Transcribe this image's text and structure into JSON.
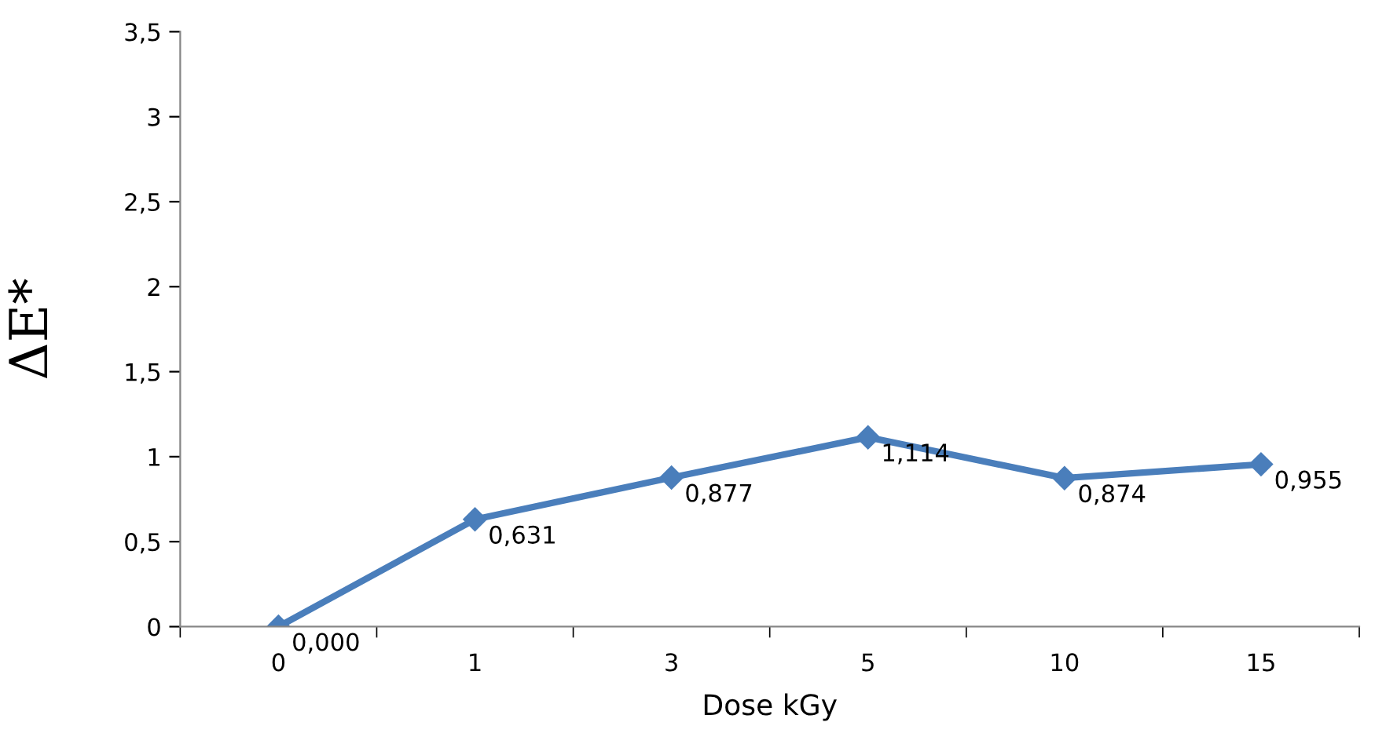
{
  "chart_data": {
    "type": "line",
    "xlabel": "Dose kGy",
    "ylabel": "ΔE*",
    "categories": [
      "0",
      "1",
      "3",
      "5",
      "10",
      "15"
    ],
    "series": [
      {
        "color": "#4a7ebb",
        "values": [
          0.0,
          0.631,
          0.877,
          1.114,
          0.874,
          0.955
        ],
        "value_labels": [
          "0,000",
          "0,631",
          "0,877",
          "1,114",
          "0,874",
          "0,955"
        ]
      }
    ],
    "ylim": [
      0,
      3.5
    ],
    "yticks": [
      0,
      {
        "value": 0.5,
        "label": "0,5"
      },
      1,
      {
        "value": 1.5,
        "label": "1,5"
      },
      2,
      {
        "value": 2.5,
        "label": "2,5"
      },
      3,
      {
        "value": 3.5,
        "label": "3,5"
      }
    ],
    "marker": "diamond",
    "line_style": "solid",
    "grid": false,
    "legend": false
  }
}
